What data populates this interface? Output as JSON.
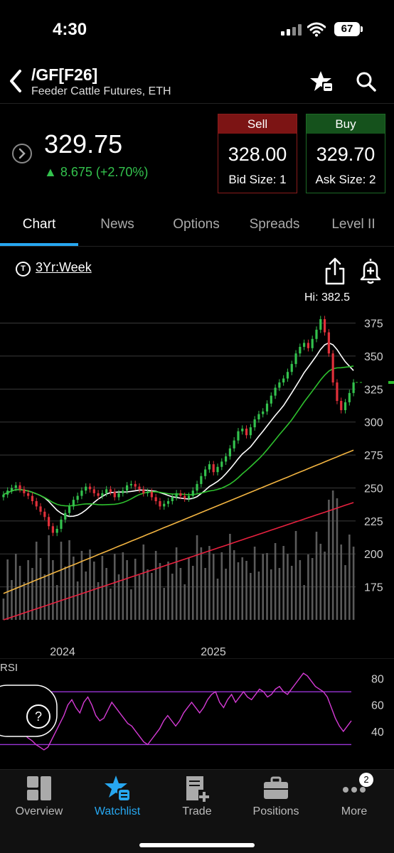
{
  "status": {
    "time": "4:30",
    "battery": "67"
  },
  "header": {
    "symbol": "/GF[F26]",
    "description": "Feeder Cattle Futures, ETH"
  },
  "quote": {
    "last": "329.75",
    "change": "▲ 8.675 (+2.70%)",
    "sell": {
      "label": "Sell",
      "price": "328.00",
      "size": "Bid Size: 1"
    },
    "buy": {
      "label": "Buy",
      "price": "329.70",
      "size": "Ask Size: 2"
    }
  },
  "tabs": [
    {
      "label": "Chart",
      "active": true
    },
    {
      "label": "News"
    },
    {
      "label": "Options"
    },
    {
      "label": "Spreads"
    },
    {
      "label": "Level II"
    }
  ],
  "chart": {
    "timeframe": "3Yr:Week",
    "timeframe_icon": "T",
    "hi_label": "Hi: 382.5",
    "rsi_label": "RSI",
    "help_icon_label": "?",
    "colors": {
      "up": "#33c24d",
      "down": "#e0303a",
      "ma_fast": "#ffffff",
      "ma_mid": "#2ec02e",
      "ma_slow": "#f2b441",
      "ma_long": "#e8213f",
      "rsi": "#d43ad4",
      "rsi_bounds": "#9a35d6",
      "volume": "#5a5a5a",
      "last_marker": "#2ec02e"
    }
  },
  "chart_data": [
    {
      "type": "candlestick",
      "title": "",
      "x_ticks": [
        "2024",
        "2025"
      ],
      "y_ticks": [
        375,
        350,
        325,
        300,
        275,
        250,
        225,
        200,
        175
      ],
      "ylim": [
        150,
        385
      ],
      "y_label_right": "325",
      "closes": [
        245,
        248,
        250,
        252,
        249,
        246,
        244,
        240,
        236,
        232,
        228,
        221,
        216,
        219,
        226,
        231,
        236,
        241,
        244,
        248,
        251,
        249,
        246,
        244,
        246,
        249,
        247,
        243,
        246,
        248,
        252,
        253,
        251,
        249,
        246,
        247,
        243,
        240,
        236,
        238,
        240,
        243,
        246,
        244,
        242,
        244,
        248,
        253,
        259,
        264,
        268,
        262,
        266,
        270,
        274,
        280,
        286,
        293,
        295,
        290,
        296,
        302,
        306,
        308,
        314,
        320,
        326,
        330,
        333,
        338,
        344,
        352,
        357,
        360,
        356,
        363,
        370,
        378,
        368,
        352,
        330,
        316,
        309,
        315,
        322,
        330
      ],
      "series": [
        {
          "name": "",
          "values_note": ""
        }
      ]
    },
    {
      "type": "line",
      "title": "RSI",
      "y_ticks": [
        80,
        60,
        40
      ],
      "ylim": [
        20,
        90
      ],
      "bounds": [
        70,
        30
      ],
      "values": [
        62,
        58,
        55,
        50,
        46,
        42,
        38,
        35,
        33,
        30,
        28,
        26,
        28,
        34,
        40,
        46,
        52,
        60,
        64,
        58,
        54,
        62,
        66,
        60,
        52,
        48,
        50,
        56,
        62,
        58,
        54,
        50,
        46,
        44,
        40,
        36,
        32,
        30,
        34,
        38,
        42,
        48,
        52,
        48,
        44,
        48,
        54,
        58,
        62,
        58,
        54,
        58,
        64,
        68,
        70,
        62,
        58,
        64,
        68,
        62,
        66,
        70,
        66,
        64,
        68,
        72,
        70,
        66,
        68,
        72,
        74,
        70,
        68,
        72,
        76,
        80,
        84,
        82,
        78,
        74,
        72,
        70,
        66,
        58,
        50,
        44,
        40,
        44,
        48
      ]
    }
  ],
  "tabbar": {
    "items": [
      {
        "label": "Overview"
      },
      {
        "label": "Watchlist",
        "active": true
      },
      {
        "label": "Trade"
      },
      {
        "label": "Positions"
      },
      {
        "label": "More"
      }
    ],
    "badge": "2"
  }
}
